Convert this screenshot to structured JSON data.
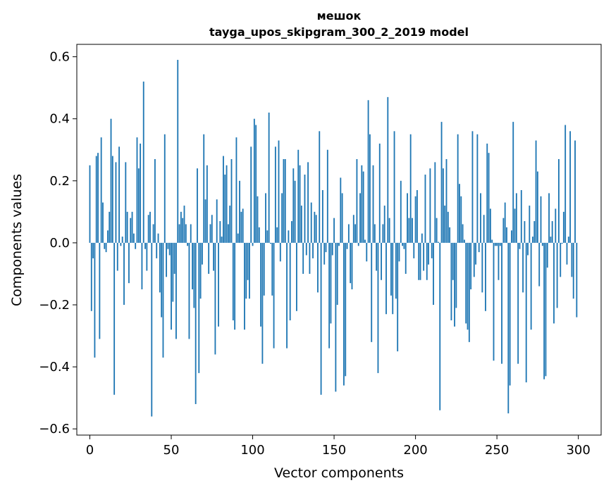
{
  "chart_data": {
    "type": "bar",
    "title": [
      "мешок",
      "tayga_upos_skipgram_300_2_2019 model"
    ],
    "xlabel": "Vector components",
    "ylabel": "Components values",
    "xlim": [
      -8,
      314
    ],
    "ylim": [
      -0.62,
      0.64
    ],
    "xticks": [
      0,
      50,
      100,
      150,
      200,
      250,
      300
    ],
    "yticks": [
      -0.6,
      -0.4,
      -0.2,
      0.0,
      0.2,
      0.4,
      0.6
    ],
    "xtick_labels": [
      "0",
      "50",
      "100",
      "150",
      "200",
      "250",
      "300"
    ],
    "ytick_labels": [
      "−0.6",
      "−0.4",
      "−0.2",
      "0.0",
      "0.2",
      "0.4",
      "0.6"
    ],
    "grid": false,
    "bar_color": "#1f77b4",
    "values": [
      0.25,
      -0.22,
      -0.05,
      -0.37,
      0.28,
      0.29,
      -0.31,
      0.34,
      0.13,
      -0.02,
      -0.03,
      0.04,
      0.1,
      0.4,
      0.28,
      -0.49,
      0.26,
      -0.09,
      0.31,
      -0.01,
      0.02,
      -0.2,
      0.26,
      0.1,
      -0.13,
      0.08,
      0.1,
      0.03,
      -0.02,
      0.34,
      0.24,
      0.32,
      -0.15,
      0.52,
      -0.02,
      -0.09,
      0.09,
      0.1,
      -0.56,
      0.06,
      0.27,
      -0.05,
      0.03,
      -0.16,
      -0.24,
      -0.37,
      0.35,
      -0.11,
      -0.02,
      -0.04,
      -0.28,
      -0.19,
      -0.1,
      -0.31,
      0.59,
      0.06,
      0.1,
      0.08,
      0.12,
      0.06,
      -0.01,
      -0.31,
      0.06,
      -0.15,
      -0.21,
      -0.52,
      0.24,
      -0.42,
      -0.18,
      -0.07,
      0.35,
      0.14,
      0.25,
      -0.1,
      0.06,
      0.09,
      -0.09,
      -0.36,
      0.14,
      -0.27,
      0.07,
      0.02,
      0.28,
      0.22,
      0.25,
      0.06,
      0.12,
      0.27,
      -0.25,
      -0.28,
      0.34,
      0.03,
      0.2,
      0.1,
      0.11,
      -0.28,
      -0.18,
      -0.12,
      -0.18,
      0.31,
      -0.01,
      0.4,
      0.38,
      0.15,
      0.05,
      -0.27,
      -0.39,
      -0.17,
      0.16,
      0.04,
      0.42,
      -0.003,
      -0.17,
      -0.34,
      0.31,
      0.05,
      0.33,
      -0.06,
      0.16,
      0.27,
      0.27,
      -0.34,
      0.04,
      -0.25,
      0.07,
      0.24,
      0.2,
      -0.22,
      0.3,
      0.25,
      0.12,
      -0.1,
      0.22,
      -0.04,
      0.26,
      -0.1,
      0.13,
      -0.05,
      0.1,
      0.09,
      -0.16,
      0.36,
      -0.49,
      0.17,
      -0.07,
      -0.03,
      0.3,
      -0.34,
      -0.26,
      -0.04,
      0.08,
      -0.48,
      -0.2,
      -0.01,
      0.21,
      0.16,
      -0.46,
      -0.43,
      -0.02,
      0.06,
      -0.13,
      -0.15,
      0.09,
      0.06,
      0.27,
      -0.01,
      0.16,
      0.25,
      0.23,
      0.01,
      -0.06,
      0.46,
      0.35,
      -0.32,
      0.25,
      0.06,
      -0.09,
      -0.42,
      0.32,
      -0.12,
      0.06,
      0.12,
      -0.23,
      0.47,
      0.08,
      -0.17,
      -0.23,
      0.36,
      -0.18,
      -0.35,
      -0.06,
      0.2,
      -0.01,
      -0.02,
      -0.1,
      0.16,
      0.08,
      0.35,
      0.08,
      -0.05,
      0.15,
      0.17,
      -0.12,
      -0.12,
      0.03,
      -0.09,
      0.22,
      -0.12,
      -0.07,
      0.24,
      -0.05,
      -0.2,
      0.26,
      0.08,
      0.003,
      -0.54,
      0.39,
      0.24,
      0.12,
      0.27,
      0.1,
      0.05,
      -0.25,
      -0.12,
      -0.27,
      -0.21,
      0.35,
      0.19,
      0.15,
      0.06,
      0.01,
      -0.26,
      -0.28,
      -0.32,
      -0.15,
      0.36,
      -0.11,
      -0.07,
      0.35,
      -0.03,
      0.16,
      -0.16,
      0.09,
      -0.22,
      0.32,
      0.29,
      0.11,
      0.01,
      -0.38,
      -0.01,
      -0.01,
      -0.12,
      -0.01,
      -0.39,
      0.08,
      0.13,
      0.05,
      -0.55,
      -0.46,
      0.04,
      0.39,
      0.11,
      0.16,
      -0.39,
      -0.02,
      0.17,
      -0.16,
      0.07,
      -0.45,
      -0.04,
      0.12,
      -0.28,
      0.02,
      0.07,
      0.33,
      0.23,
      -0.14,
      0.15,
      -0.01,
      -0.44,
      -0.43,
      -0.08,
      0.16,
      0.02,
      0.07,
      -0.26,
      0.11,
      -0.21,
      0.27,
      -0.11,
      -0.003,
      0.1,
      0.38,
      -0.07,
      0.02,
      0.36,
      -0.11,
      -0.18,
      0.33,
      -0.24
    ]
  }
}
